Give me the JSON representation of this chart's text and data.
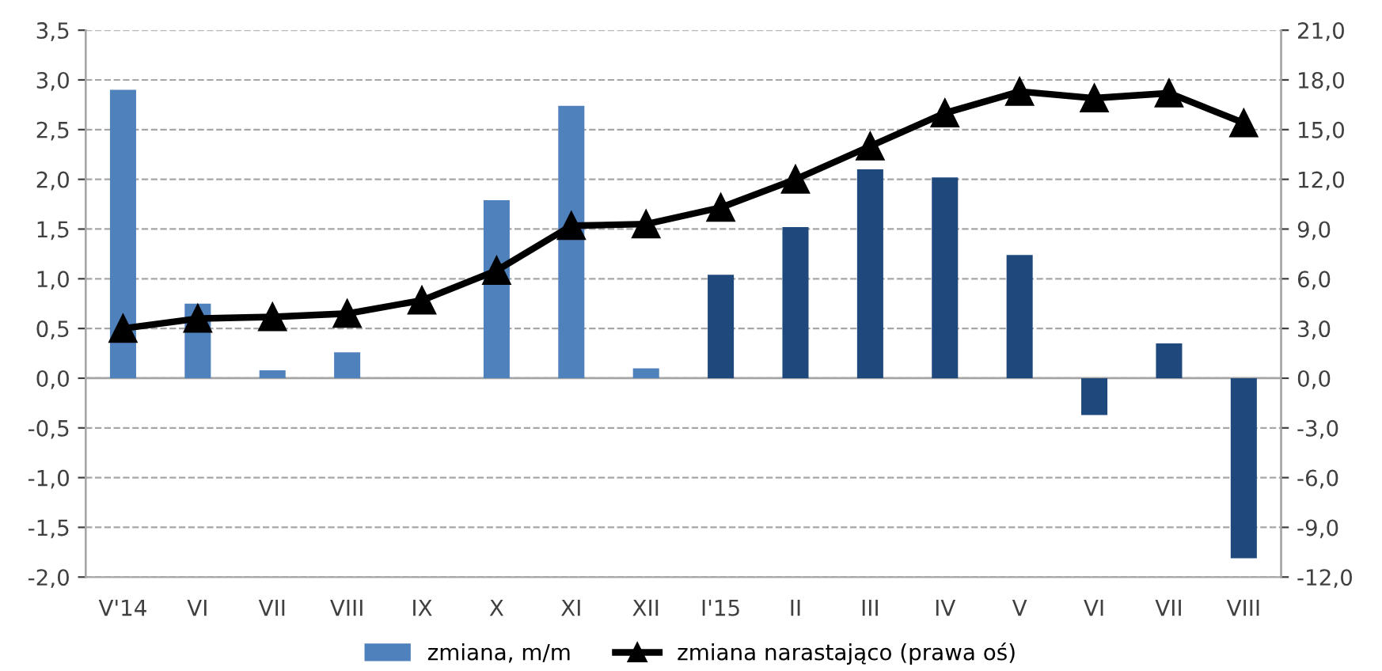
{
  "chart_data": {
    "type": "bar",
    "categories": [
      "V'14",
      "VI",
      "VII",
      "VIII",
      "IX",
      "X",
      "XI",
      "XII",
      "I'15",
      "II",
      "III",
      "IV",
      "V",
      "VI",
      "VII",
      "VIII"
    ],
    "series": [
      {
        "name": "zmiana, m/m",
        "color": "#4f81bd",
        "colors": [
          "#4f81bd",
          "#4f81bd",
          "#4f81bd",
          "#4f81bd",
          "#4f81bd",
          "#4f81bd",
          "#4f81bd",
          "#4f81bd",
          "#1f497d",
          "#1f497d",
          "#1f497d",
          "#1f497d",
          "#1f497d",
          "#1f497d",
          "#1f497d",
          "#1f497d"
        ],
        "values": [
          2.9,
          0.75,
          0.08,
          0.26,
          null,
          1.79,
          2.74,
          0.1,
          1.04,
          1.52,
          2.1,
          2.02,
          1.24,
          -0.37,
          0.35,
          -1.81
        ]
      },
      {
        "name": "zmiana narastająco (prawa oś)",
        "type": "line",
        "axis": "y2",
        "color": "#000000",
        "marker": "triangle",
        "line_style": "solid",
        "values": [
          3.0,
          3.6,
          3.7,
          3.9,
          4.7,
          6.5,
          9.2,
          9.3,
          10.3,
          12.0,
          14.0,
          16.0,
          17.3,
          16.9,
          17.2,
          15.4
        ]
      }
    ],
    "ylim": [
      -2.0,
      3.5
    ],
    "yticks": [
      {
        "value": -2.0,
        "label": "-2,0"
      },
      {
        "value": -1.5,
        "label": "-1,5"
      },
      {
        "value": -1.0,
        "label": "-1,0"
      },
      {
        "value": -0.5,
        "label": "-0,5"
      },
      {
        "value": 0.0,
        "label": "0,0"
      },
      {
        "value": 0.5,
        "label": "0,5"
      },
      {
        "value": 1.0,
        "label": "1,0"
      },
      {
        "value": 1.5,
        "label": "1,5"
      },
      {
        "value": 2.0,
        "label": "2,0"
      },
      {
        "value": 2.5,
        "label": "2,5"
      },
      {
        "value": 3.0,
        "label": "3,0"
      },
      {
        "value": 3.5,
        "label": "3,5"
      }
    ],
    "y2lim": [
      -12.0,
      21.0
    ],
    "y2ticks": [
      {
        "value": -12,
        "label": "-12,0"
      },
      {
        "value": -9,
        "label": "-9,0"
      },
      {
        "value": -6,
        "label": "-6,0"
      },
      {
        "value": -3,
        "label": "-3,0"
      },
      {
        "value": 0,
        "label": "0,0"
      },
      {
        "value": 3,
        "label": "3,0"
      },
      {
        "value": 6,
        "label": "6,0"
      },
      {
        "value": 9,
        "label": "9,0"
      },
      {
        "value": 12,
        "label": "12,0"
      },
      {
        "value": 15,
        "label": "15,0"
      },
      {
        "value": 18,
        "label": "18,0"
      },
      {
        "value": 21,
        "label": "21,0"
      }
    ],
    "grid": "y",
    "legend": "bottom"
  }
}
